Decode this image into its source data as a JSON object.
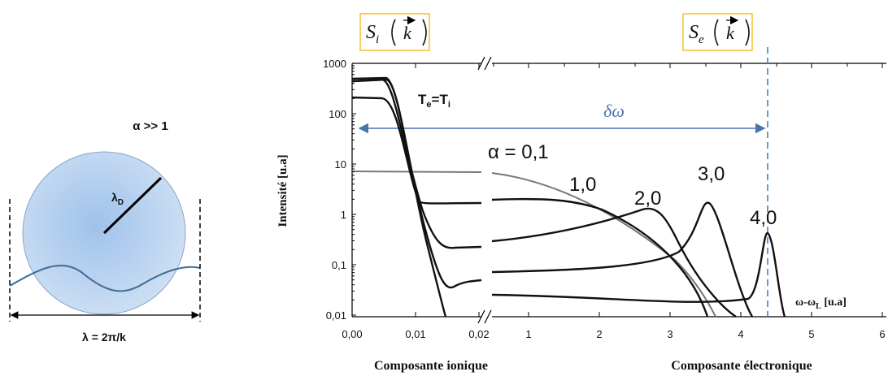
{
  "left_panel": {
    "title": "α >> 1",
    "radius_label": {
      "main": "λ",
      "sub": "D"
    },
    "wavelength_label": "λ = 2π/k"
  },
  "right_panel": {
    "ion_box": {
      "main": "S",
      "sub": "i",
      "arg": "k"
    },
    "electron_box": {
      "main": "S",
      "sub": "e",
      "arg": "k"
    },
    "y_axis_label": "Intensité [u.a]",
    "y_ticks": [
      "1000",
      "100",
      "10",
      "1",
      "0,1",
      "0,01"
    ],
    "x_ticks_ionic": [
      "0,00",
      "0,01",
      "0,02"
    ],
    "x_ticks_electronic": [
      "1",
      "2",
      "3",
      "4",
      "5",
      "6"
    ],
    "x_unit": {
      "main": "ω-ω",
      "sub": "L",
      "rest": " [u.a]"
    },
    "temperature_label": {
      "t1": "T",
      "s1": "e",
      "t2": "=T",
      "s2": "i"
    },
    "shift_label": "δω",
    "curve_labels": [
      "α = 0,1",
      "1,0",
      "2,0",
      "3,0",
      "4,0"
    ],
    "x_title_ionic": "Composante ionique",
    "x_title_electronic": "Composante électronique"
  }
}
